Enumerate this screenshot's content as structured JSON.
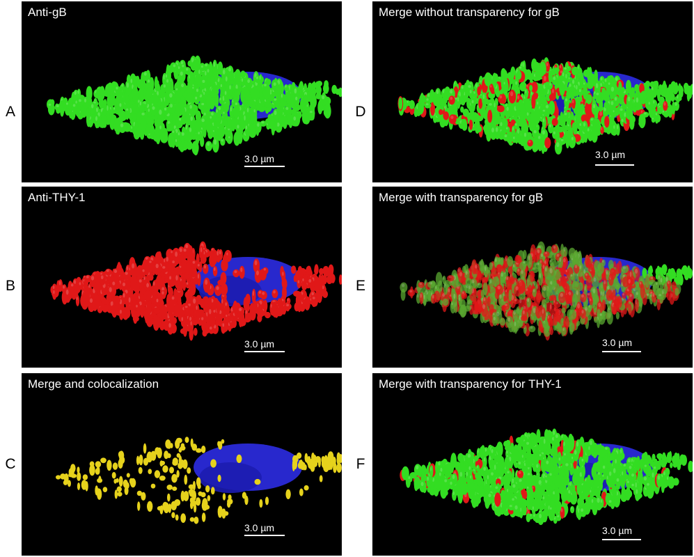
{
  "figure": {
    "panels": [
      {
        "id": "A",
        "letter": "A",
        "title": "Anti-gB",
        "scale": "3.0 µm",
        "mode": "green"
      },
      {
        "id": "B",
        "letter": "B",
        "title": "Anti-THY-1",
        "scale": "3.0 µm",
        "mode": "red"
      },
      {
        "id": "C",
        "letter": "C",
        "title": "Merge and colocalization",
        "scale": "3.0 µm",
        "mode": "yellow"
      },
      {
        "id": "D",
        "letter": "D",
        "title": "Merge without transparency for gB",
        "scale": "3.0 µm",
        "mode": "green-red"
      },
      {
        "id": "E",
        "letter": "E",
        "title": "Merge with transparency for gB",
        "scale": "3.0 µm",
        "mode": "mix"
      },
      {
        "id": "F",
        "letter": "F",
        "title": "Merge with transparency for THY-1",
        "scale": "3.0 µm",
        "mode": "green-sparse-red"
      }
    ],
    "colors": {
      "background": "#000000",
      "gB": "#33dd22",
      "thy1": "#e01818",
      "colocalization": "#e6d21c",
      "nucleus": "#2a2ad8"
    }
  }
}
